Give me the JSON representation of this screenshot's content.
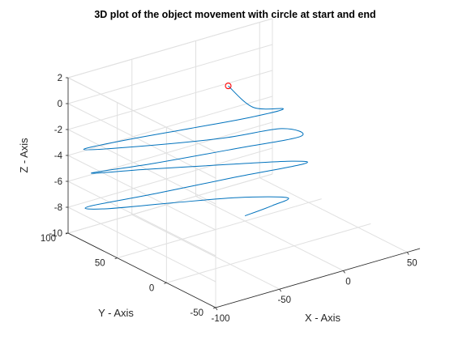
{
  "chart_data": {
    "type": "line3d",
    "title": "3D plot of the object movement with circle at start and end",
    "xlabel": "X - Axis",
    "ylabel": "Y - Axis",
    "zlabel": "Z - Axis",
    "xlim": [
      -100,
      60
    ],
    "ylim": [
      -50,
      100
    ],
    "zlim": [
      -10,
      2
    ],
    "xticks": [
      -100,
      -50,
      0,
      50
    ],
    "yticks": [
      -50,
      0,
      50,
      100
    ],
    "zticks": [
      2,
      0,
      -2,
      -4,
      -6,
      -8,
      -10
    ],
    "xtick_labels": [
      "-100",
      "-50",
      "0",
      "50"
    ],
    "ytick_labels": [
      "-50",
      "0",
      "50",
      "100"
    ],
    "ztick_labels": [
      "2",
      "0",
      "-2",
      "-4",
      "-6",
      "-8",
      "-10"
    ],
    "grid": true,
    "line_color": "#0072BD",
    "marker_color": "#FF0000",
    "series": [
      {
        "points": [
          [
            10,
            80,
            -1
          ],
          [
            14,
            60,
            -2
          ],
          [
            30,
            50,
            -2.2
          ],
          [
            6,
            55,
            -2.4
          ],
          [
            -30,
            66,
            -2.6
          ],
          [
            -70,
            82,
            -3.0
          ],
          [
            -94,
            92,
            -3.4
          ],
          [
            -68,
            82,
            -3.6
          ],
          [
            -10,
            62,
            -3.8
          ],
          [
            30,
            52,
            -3.8
          ],
          [
            40,
            45,
            -4.4
          ],
          [
            0,
            60,
            -4.8
          ],
          [
            -50,
            78,
            -5.2
          ],
          [
            -88,
            92,
            -5.4
          ],
          [
            -55,
            80,
            -5.6
          ],
          [
            -5,
            63,
            -6.0
          ],
          [
            35,
            48,
            -6.3
          ],
          [
            42,
            45,
            -6.6
          ],
          [
            0,
            60,
            -7.0
          ],
          [
            -50,
            75,
            -7.4
          ],
          [
            -92,
            90,
            -7.8
          ],
          [
            -82,
            86,
            -8.1
          ],
          [
            -40,
            72,
            -8.3
          ],
          [
            0,
            58,
            -8.5
          ],
          [
            30,
            46,
            -8.9
          ],
          [
            20,
            48,
            -9.3
          ],
          [
            0,
            50,
            -9.6
          ]
        ],
        "start_marker": [
          10,
          80,
          -1
        ]
      }
    ]
  }
}
